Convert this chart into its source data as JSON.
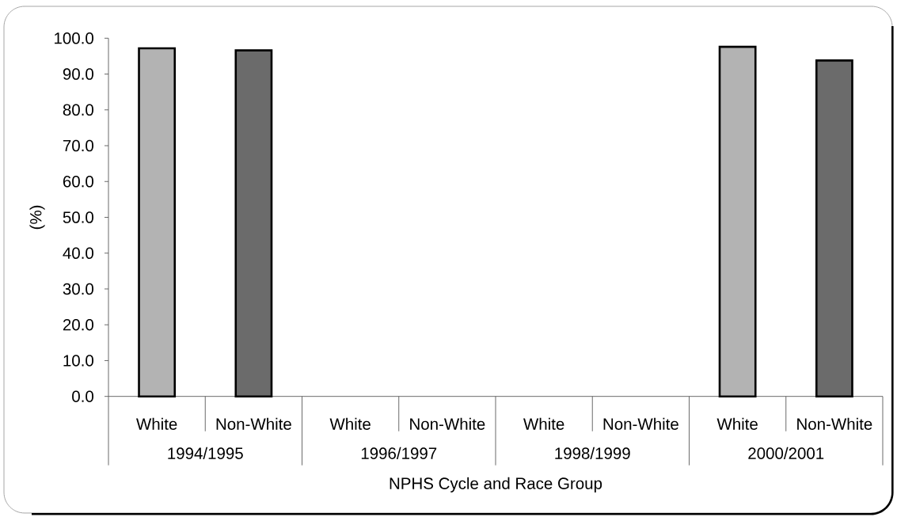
{
  "chart_data": {
    "type": "bar",
    "xlabel": "NPHS Cycle and Race Group",
    "ylabel": "(%)",
    "categories": [
      "White",
      "Non-White",
      "White",
      "Non-White",
      "White",
      "Non-White",
      "White",
      "Non-White"
    ],
    "values": [
      97.2,
      96.6,
      null,
      null,
      null,
      null,
      97.6,
      93.8
    ],
    "colors": [
      "#b3b3b3",
      "#6b6b6b",
      null,
      null,
      null,
      null,
      "#b3b3b3",
      "#6b6b6b"
    ],
    "ylim": [
      0,
      100
    ],
    "yticks": [
      {
        "value": 0,
        "label": "0.0"
      },
      {
        "value": 10,
        "label": "10.0"
      },
      {
        "value": 20,
        "label": "20.0"
      },
      {
        "value": 30,
        "label": "30.0"
      },
      {
        "value": 40,
        "label": "40.0"
      },
      {
        "value": 50,
        "label": "50.0"
      },
      {
        "value": 60,
        "label": "60.0"
      },
      {
        "value": 70,
        "label": "70.0"
      },
      {
        "value": 80,
        "label": "80.0"
      },
      {
        "value": 90,
        "label": "90.0"
      },
      {
        "value": 100,
        "label": "100.0"
      }
    ],
    "annotations": [
      "1994/1995",
      "1996/1997",
      "1998/1999",
      "2000/2001"
    ]
  }
}
